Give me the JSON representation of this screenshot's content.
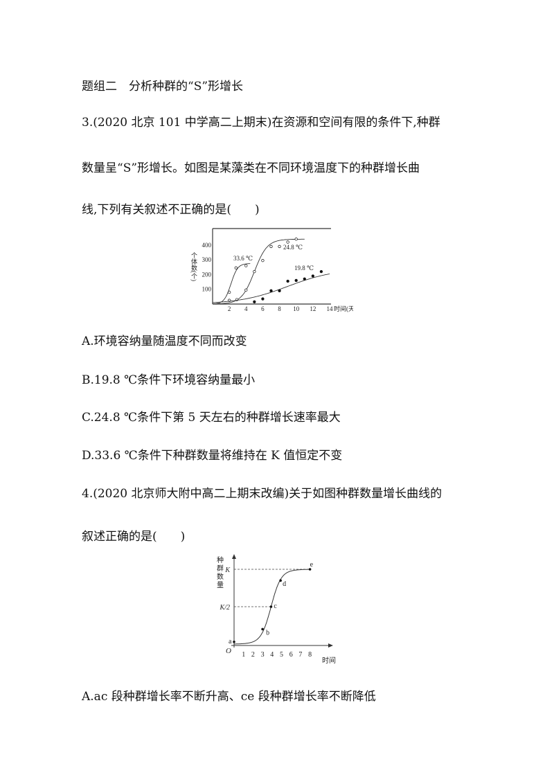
{
  "section_title": "题组二　分析种群的“S”形增长",
  "q3": {
    "lines": [
      "3.(2020 北京 101 中学高二上期末)在资源和空间有限的条件下,种群",
      "数量呈“S”形增长。如图是某藻类在不同环境温度下的种群增长曲",
      "线,下列有关叙述不正确的是(　　)"
    ],
    "options": [
      "A.环境容纳量随温度不同而改变",
      "B.19.8 ℃条件下环境容纳量最小",
      "C.24.8 ℃条件下第 5 天左右的种群增长速率最大",
      "D.33.6 ℃条件下种群数量将维持在 K 值恒定不变"
    ]
  },
  "q4": {
    "lines": [
      "4.(2020 北京师大附中高二上期末改编)关于如图种群数量增长曲线的",
      "叙述正确的是(　　)"
    ],
    "options": [
      "A.ac 段种群增长率不断升高、ce 段种群增长率不断降低"
    ]
  },
  "chart_data": [
    {
      "type": "line",
      "xlabel": "时间(天)",
      "ylabel": "个体数(个)",
      "xticks": [
        "2",
        "4",
        "6",
        "8",
        "10",
        "12",
        "14"
      ],
      "yticks": [
        "100",
        "200",
        "300",
        "400"
      ],
      "xlim": [
        0,
        14
      ],
      "ylim": [
        0,
        500
      ],
      "series": [
        {
          "name": "33.6 ℃",
          "marker": "open",
          "x": [
            2,
            2.8,
            4
          ],
          "y": [
            80,
            245,
            260
          ]
        },
        {
          "name": "24.8 ℃",
          "marker": "open",
          "x": [
            2,
            2.9,
            4,
            5,
            6,
            7,
            8,
            9,
            10
          ],
          "y": [
            25,
            30,
            95,
            220,
            295,
            390,
            390,
            420,
            440
          ]
        },
        {
          "name": "19.8 ℃",
          "marker": "filled",
          "x": [
            5,
            6,
            7,
            8,
            9,
            10,
            11,
            12,
            13
          ],
          "y": [
            15,
            35,
            90,
            90,
            155,
            160,
            170,
            190,
            220
          ]
        }
      ]
    },
    {
      "type": "line",
      "xlabel": "时间",
      "ylabel": "种群数量",
      "origin_label": "O",
      "xticks": [
        "1",
        "2",
        "3",
        "4",
        "5",
        "6",
        "7",
        "8"
      ],
      "yticks": [
        "K/2",
        "K"
      ],
      "xlim": [
        0,
        8.5
      ],
      "ylim": [
        0,
        1.1
      ],
      "points": [
        {
          "label": "a",
          "x": 0,
          "y": 0.03
        },
        {
          "label": "b",
          "x": 3,
          "y": 0.2
        },
        {
          "label": "c",
          "x": 3.9,
          "y": 0.5
        },
        {
          "label": "d",
          "x": 4.9,
          "y": 0.85
        },
        {
          "label": "e",
          "x": 8,
          "y": 1
        }
      ]
    }
  ]
}
